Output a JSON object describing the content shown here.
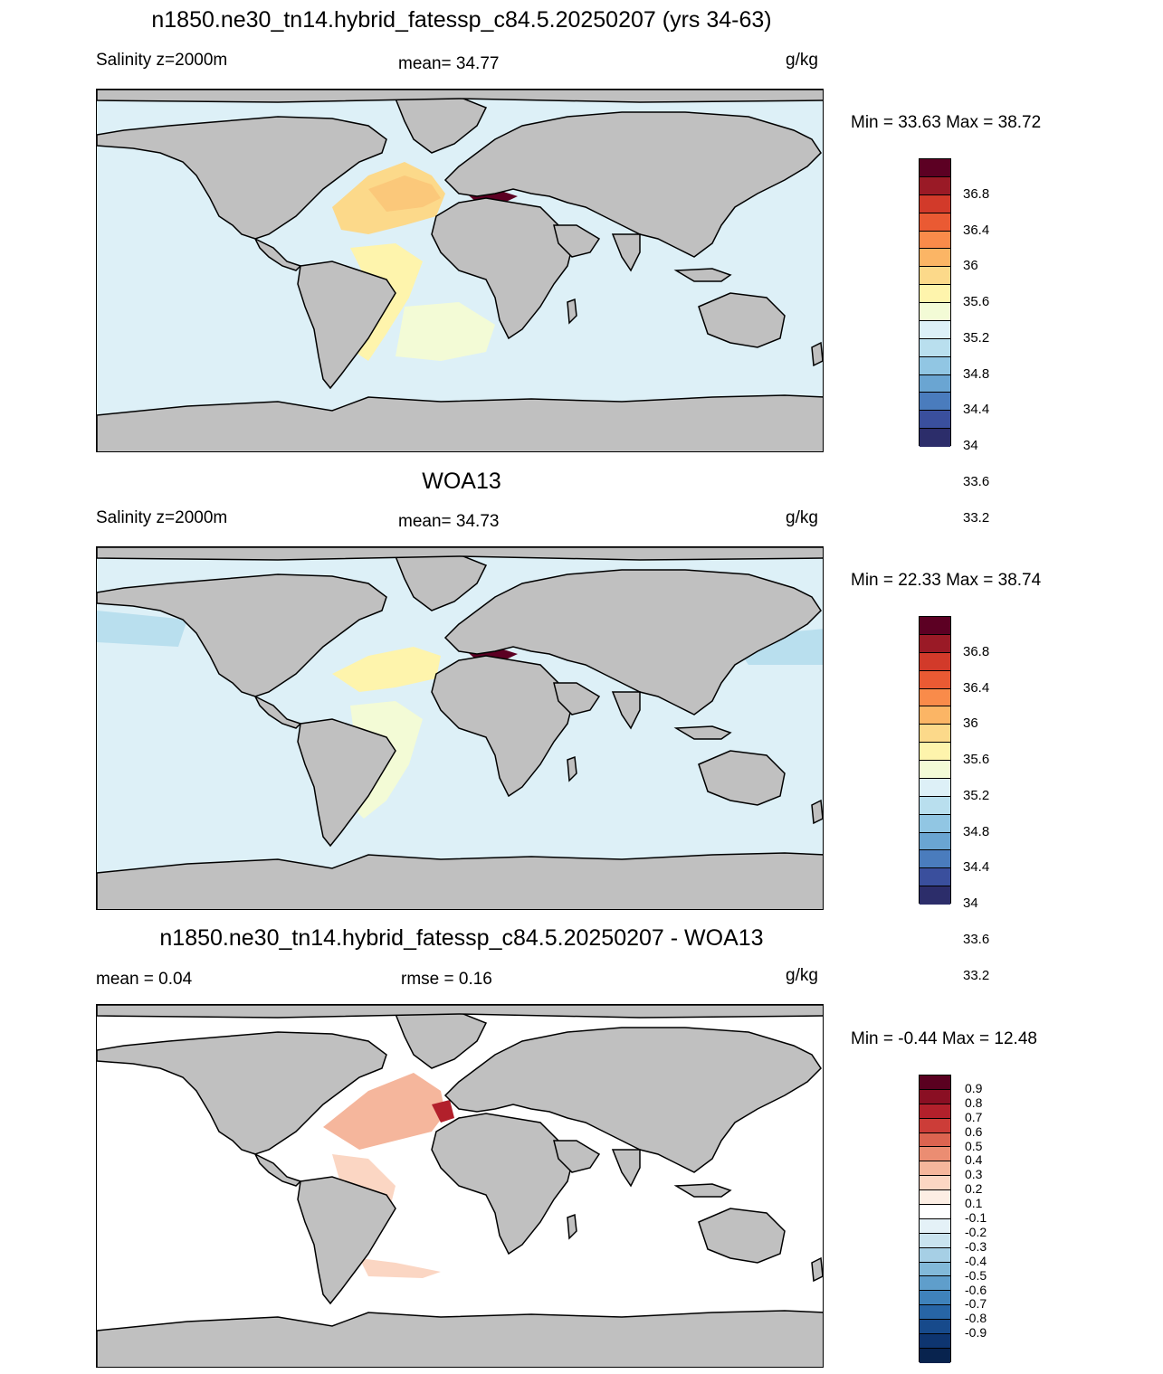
{
  "panels": [
    {
      "title": "n1850.ne30_tn14.hybrid_fatessp_c84.5.20250207 (yrs 34-63)",
      "left_label": "Salinity z=2000m",
      "center_label": "mean=  34.77",
      "units": "g/kg",
      "minmax": "Min =  33.63 Max =  38.72",
      "colorbar": {
        "colors": [
          "#5c0023",
          "#9a1a26",
          "#d23a2a",
          "#ea5a33",
          "#f98b4a",
          "#fbb565",
          "#fcd98a",
          "#fef4ac",
          "#f3fbd6",
          "#ddf0f7",
          "#b9dfee",
          "#91c6e3",
          "#6aa5d2",
          "#4a7cbd",
          "#3a4f9d",
          "#2c2d6a"
        ],
        "labels": [
          "36.8",
          "36.4",
          "36",
          "35.6",
          "35.2",
          "34.8",
          "34.4",
          "34",
          "33.6",
          "33.2"
        ]
      }
    },
    {
      "title": "WOA13",
      "left_label": "Salinity z=2000m",
      "center_label": "mean=  34.73",
      "units": "g/kg",
      "minmax": "Min =  22.33 Max =  38.74",
      "colorbar": {
        "colors": [
          "#5c0023",
          "#9a1a26",
          "#d23a2a",
          "#ea5a33",
          "#f98b4a",
          "#fbb565",
          "#fcd98a",
          "#fef4ac",
          "#f3fbd6",
          "#ddf0f7",
          "#b9dfee",
          "#91c6e3",
          "#6aa5d2",
          "#4a7cbd",
          "#3a4f9d",
          "#2c2d6a"
        ],
        "labels": [
          "36.8",
          "36.4",
          "36",
          "35.6",
          "35.2",
          "34.8",
          "34.4",
          "34",
          "33.6",
          "33.2"
        ]
      }
    },
    {
      "title": "n1850.ne30_tn14.hybrid_fatessp_c84.5.20250207 - WOA13",
      "left_label": "mean =   0.04",
      "center_label": "rmse =   0.16",
      "units": "g/kg",
      "minmax": "Min =  -0.44 Max =  12.48",
      "colorbar": {
        "colors": [
          "#5a0020",
          "#8a0f23",
          "#b2202b",
          "#cc3d38",
          "#dc6450",
          "#eb8d72",
          "#f5b69c",
          "#fbd6c3",
          "#fdeee4",
          "#ffffff",
          "#e4f1f7",
          "#c9e3ef",
          "#a6cfe5",
          "#82b9d9",
          "#5f9ecb",
          "#3f82bb",
          "#2765a6",
          "#174a8b",
          "#0e3570",
          "#08234e"
        ],
        "labels": [
          "0.9",
          "0.8",
          "0.7",
          "0.6",
          "0.5",
          "0.4",
          "0.3",
          "0.2",
          "0.1",
          "-0.1",
          "-0.2",
          "-0.3",
          "-0.4",
          "-0.5",
          "-0.6",
          "-0.7",
          "-0.8",
          "-0.9"
        ]
      }
    }
  ],
  "map_colors": {
    "land": "#c0c0c0",
    "ocean_panel_1": "#ddf0f7",
    "ocean_panel_2": "#ddf0f7",
    "ocean_panel_3": "#ffffff",
    "coast": "#000000"
  }
}
